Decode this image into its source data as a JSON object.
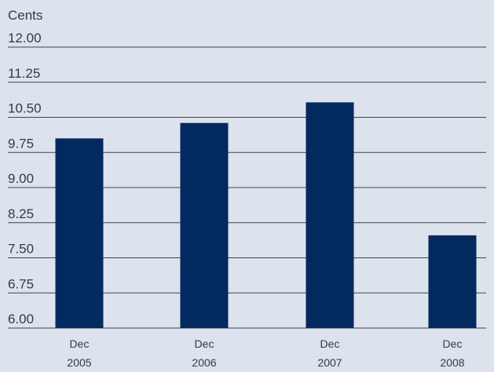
{
  "colors": {
    "background": "#dde3ed",
    "bar": "#022a5e",
    "gridline": "#3f4550",
    "text": "#333a45"
  },
  "chart_data": {
    "type": "bar",
    "ylabel": "Cents",
    "categories": [
      [
        "Dec",
        "2005"
      ],
      [
        "Dec",
        "2006"
      ],
      [
        "Dec",
        "2007"
      ],
      [
        "Dec",
        "2008"
      ]
    ],
    "values": [
      10.05,
      10.38,
      10.82,
      7.98
    ],
    "ylim": [
      6.0,
      12.0
    ],
    "yticks": [
      "12.00",
      "11.25",
      "10.50",
      "9.75",
      "9.00",
      "8.25",
      "7.50",
      "6.75",
      "6.00"
    ],
    "grid": true,
    "legend": "none"
  }
}
